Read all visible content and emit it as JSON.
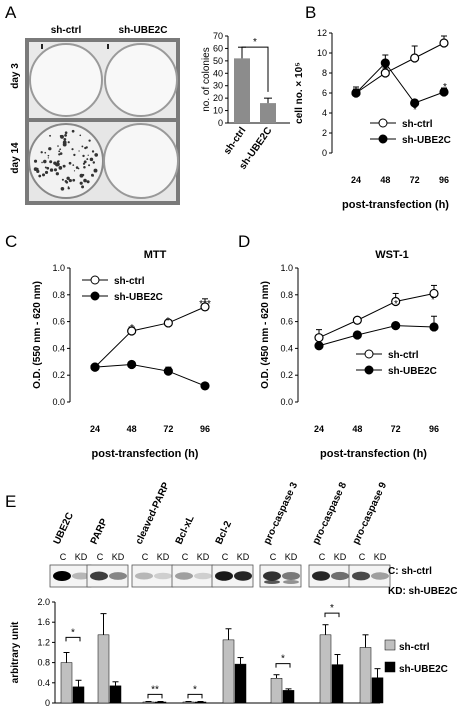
{
  "panels": {
    "A": {
      "letter": "A",
      "col_labels": [
        "sh-ctrl",
        "sh-UBE2C"
      ],
      "row_labels": [
        "day 3",
        "day 14"
      ]
    },
    "B": {
      "letter": "B"
    },
    "C": {
      "letter": "C"
    },
    "D": {
      "letter": "D"
    },
    "E": {
      "letter": "E",
      "blot_lanes": [
        "C",
        "KD"
      ],
      "blot_proteins": [
        "UBE2C",
        "PARP",
        "cleaved-PARP",
        "Bcl-xL",
        "Bcl-2",
        "pro-caspase 3",
        "pro-caspase 8",
        "pro-caspase 9"
      ],
      "key": [
        "C: sh-ctrl",
        "KD: sh-UBE2C"
      ]
    }
  },
  "chart_data": [
    {
      "id": "A-bar",
      "type": "bar",
      "categories": [
        "sh-ctrl",
        "sh-UBE2C"
      ],
      "values": [
        52,
        16
      ],
      "errors": [
        9,
        4
      ],
      "ylabel": "no. of colonies",
      "ylim": [
        0,
        70
      ],
      "yticks": [
        0,
        10,
        20,
        30,
        40,
        50,
        60,
        70
      ],
      "significance": [
        "*"
      ],
      "color": "#8c8c8c"
    },
    {
      "id": "B-line",
      "type": "line",
      "x": [
        24,
        48,
        72,
        96
      ],
      "ylabel": "cell no. × 10⁵",
      "xlabel": "post-transfection (h)",
      "ylim": [
        0,
        12
      ],
      "yticks": [
        0,
        2,
        4,
        6,
        8,
        10,
        12
      ],
      "series": [
        {
          "name": "sh-ctrl",
          "values": [
            6.0,
            8.0,
            9.5,
            11.0
          ],
          "errors": [
            0.6,
            0.5,
            1.2,
            0.7
          ],
          "marker": "open"
        },
        {
          "name": "sh-UBE2C",
          "values": [
            6.0,
            9.0,
            5.0,
            6.1
          ],
          "errors": [
            0.4,
            0.8,
            0.3,
            0.4
          ],
          "marker": "filled"
        }
      ],
      "significance": [
        "*",
        "*"
      ],
      "legend": "bottom-right"
    },
    {
      "id": "C-line",
      "type": "line",
      "title": "MTT",
      "x": [
        24,
        48,
        72,
        96
      ],
      "ylabel": "O.D. (550 nm - 620 nm)",
      "xlabel": "post-transfection (h)",
      "ylim": [
        0,
        1
      ],
      "yticks": [
        0,
        0.2,
        0.4,
        0.6,
        0.8,
        1
      ],
      "series": [
        {
          "name": "sh-ctrl",
          "values": [
            0.26,
            0.53,
            0.59,
            0.71
          ],
          "errors": [
            0.02,
            0.03,
            0.02,
            0.06
          ],
          "marker": "open"
        },
        {
          "name": "sh-UBE2C",
          "values": [
            0.26,
            0.28,
            0.23,
            0.12
          ],
          "errors": [
            0.02,
            0.02,
            0.03,
            0.01
          ],
          "marker": "filled"
        }
      ],
      "significance": [
        "*",
        "*",
        "***"
      ],
      "legend": "top-left"
    },
    {
      "id": "D-line",
      "type": "line",
      "title": "WST-1",
      "x": [
        24,
        48,
        72,
        96
      ],
      "ylabel": "O.D. (450 nm - 620 nm)",
      "xlabel": "post-transfection (h)",
      "ylim": [
        0,
        1
      ],
      "yticks": [
        0,
        0.2,
        0.4,
        0.6,
        0.8,
        1
      ],
      "series": [
        {
          "name": "sh-ctrl",
          "values": [
            0.48,
            0.61,
            0.75,
            0.81
          ],
          "errors": [
            0.06,
            0.02,
            0.06,
            0.06
          ],
          "marker": "open"
        },
        {
          "name": "sh-UBE2C",
          "values": [
            0.42,
            0.5,
            0.57,
            0.56
          ],
          "errors": [
            0.02,
            0.02,
            0.02,
            0.08
          ],
          "marker": "filled"
        }
      ],
      "significance": [
        "*",
        "*"
      ],
      "legend": "right"
    },
    {
      "id": "E-bar",
      "type": "bar",
      "categories": [
        "UBE2C",
        "PARP",
        "cleaved-PARP",
        "Bcl-xL",
        "Bcl-2",
        "pro-caspase 3",
        "pro-caspase 8",
        "pro-caspase 9"
      ],
      "ylabel": "arbitrary unit",
      "ylim": [
        0,
        2
      ],
      "yticks": [
        0,
        0.4,
        0.8,
        1.2,
        1.6,
        2
      ],
      "series": [
        {
          "name": "sh-ctrl",
          "color": "#c0c0c0",
          "values": [
            0.8,
            1.35,
            0.02,
            0.02,
            1.25,
            0.49,
            1.35,
            1.1
          ],
          "errors": [
            0.2,
            0.42,
            0.01,
            0.01,
            0.22,
            0.07,
            0.2,
            0.25
          ]
        },
        {
          "name": "sh-UBE2C",
          "color": "#000000",
          "values": [
            0.32,
            0.34,
            0.02,
            0.02,
            0.77,
            0.25,
            0.76,
            0.5
          ],
          "errors": [
            0.13,
            0.08,
            0.01,
            0.01,
            0.13,
            0.03,
            0.2,
            0.18
          ]
        }
      ],
      "significance": [
        "*",
        "**",
        "*",
        "*",
        "*"
      ],
      "legend": "right"
    }
  ]
}
